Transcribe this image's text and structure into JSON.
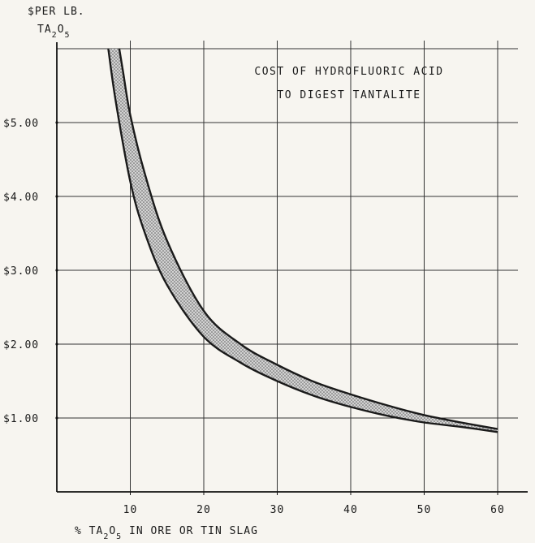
{
  "chart_data": {
    "type": "area",
    "title_lines": [
      "COST OF HYDROFLUORIC ACID",
      "TO DIGEST TANTALITE"
    ],
    "ylabel_top": "$PER LB.",
    "ylabel_formula": {
      "base": "TA",
      "sub1": "2",
      "mid": "O",
      "sub2": "5"
    },
    "xlabel": {
      "prefix": "% TA",
      "sub1": "2",
      "mid": "O",
      "sub2": "5",
      "suffix": " IN ORE OR TIN SLAG"
    },
    "x_ticks": [
      "10",
      "20",
      "30",
      "40",
      "50",
      "60"
    ],
    "x_tick_values": [
      10,
      20,
      30,
      40,
      50,
      60
    ],
    "y_ticks": [
      "$1.00",
      "$2.00",
      "$3.00",
      "$4.00",
      "$5.00"
    ],
    "y_tick_values": [
      1,
      2,
      3,
      4,
      5
    ],
    "xlim": [
      0,
      65
    ],
    "ylim": [
      0,
      6
    ],
    "grid": true,
    "band_fill": "#b8b8b8",
    "line_color": "#1a1a1a",
    "series": [
      {
        "role": "lower-bound",
        "x": [
          7,
          8,
          10,
          12,
          15,
          20,
          25,
          30,
          35,
          40,
          45,
          50,
          55,
          60
        ],
        "y": [
          6.0,
          5.3,
          4.2,
          3.5,
          2.8,
          2.1,
          1.75,
          1.5,
          1.3,
          1.15,
          1.03,
          0.94,
          0.88,
          0.81
        ]
      },
      {
        "role": "upper-bound",
        "x": [
          8.5,
          9,
          10,
          12,
          15,
          20,
          25,
          30,
          35,
          40,
          45,
          50,
          55,
          60
        ],
        "y": [
          6.0,
          5.7,
          5.1,
          4.3,
          3.4,
          2.45,
          2.0,
          1.72,
          1.49,
          1.32,
          1.17,
          1.04,
          0.94,
          0.85
        ]
      }
    ]
  }
}
